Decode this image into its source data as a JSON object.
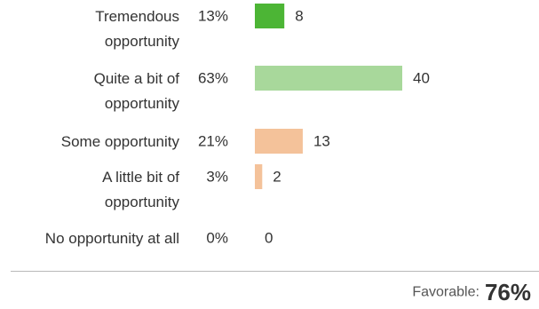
{
  "chart_data": {
    "type": "bar",
    "orientation": "horizontal",
    "categories": [
      [
        "Tremendous",
        "opportunity"
      ],
      [
        "Quite a bit of",
        "opportunity"
      ],
      [
        "Some opportunity"
      ],
      [
        "A little bit of",
        "opportunity"
      ],
      [
        "No opportunity at all"
      ]
    ],
    "percentages": [
      "13%",
      "63%",
      "21%",
      "3%",
      "0%"
    ],
    "values": [
      8,
      40,
      13,
      2,
      0
    ],
    "bar_colors": [
      "#4cb535",
      "#a8d89b",
      "#f4c29a",
      "#f4c29a",
      "#f4c29a"
    ],
    "xlim": [
      0,
      40
    ],
    "grid": false
  },
  "summary": {
    "label": "Favorable:",
    "value": "76%"
  }
}
